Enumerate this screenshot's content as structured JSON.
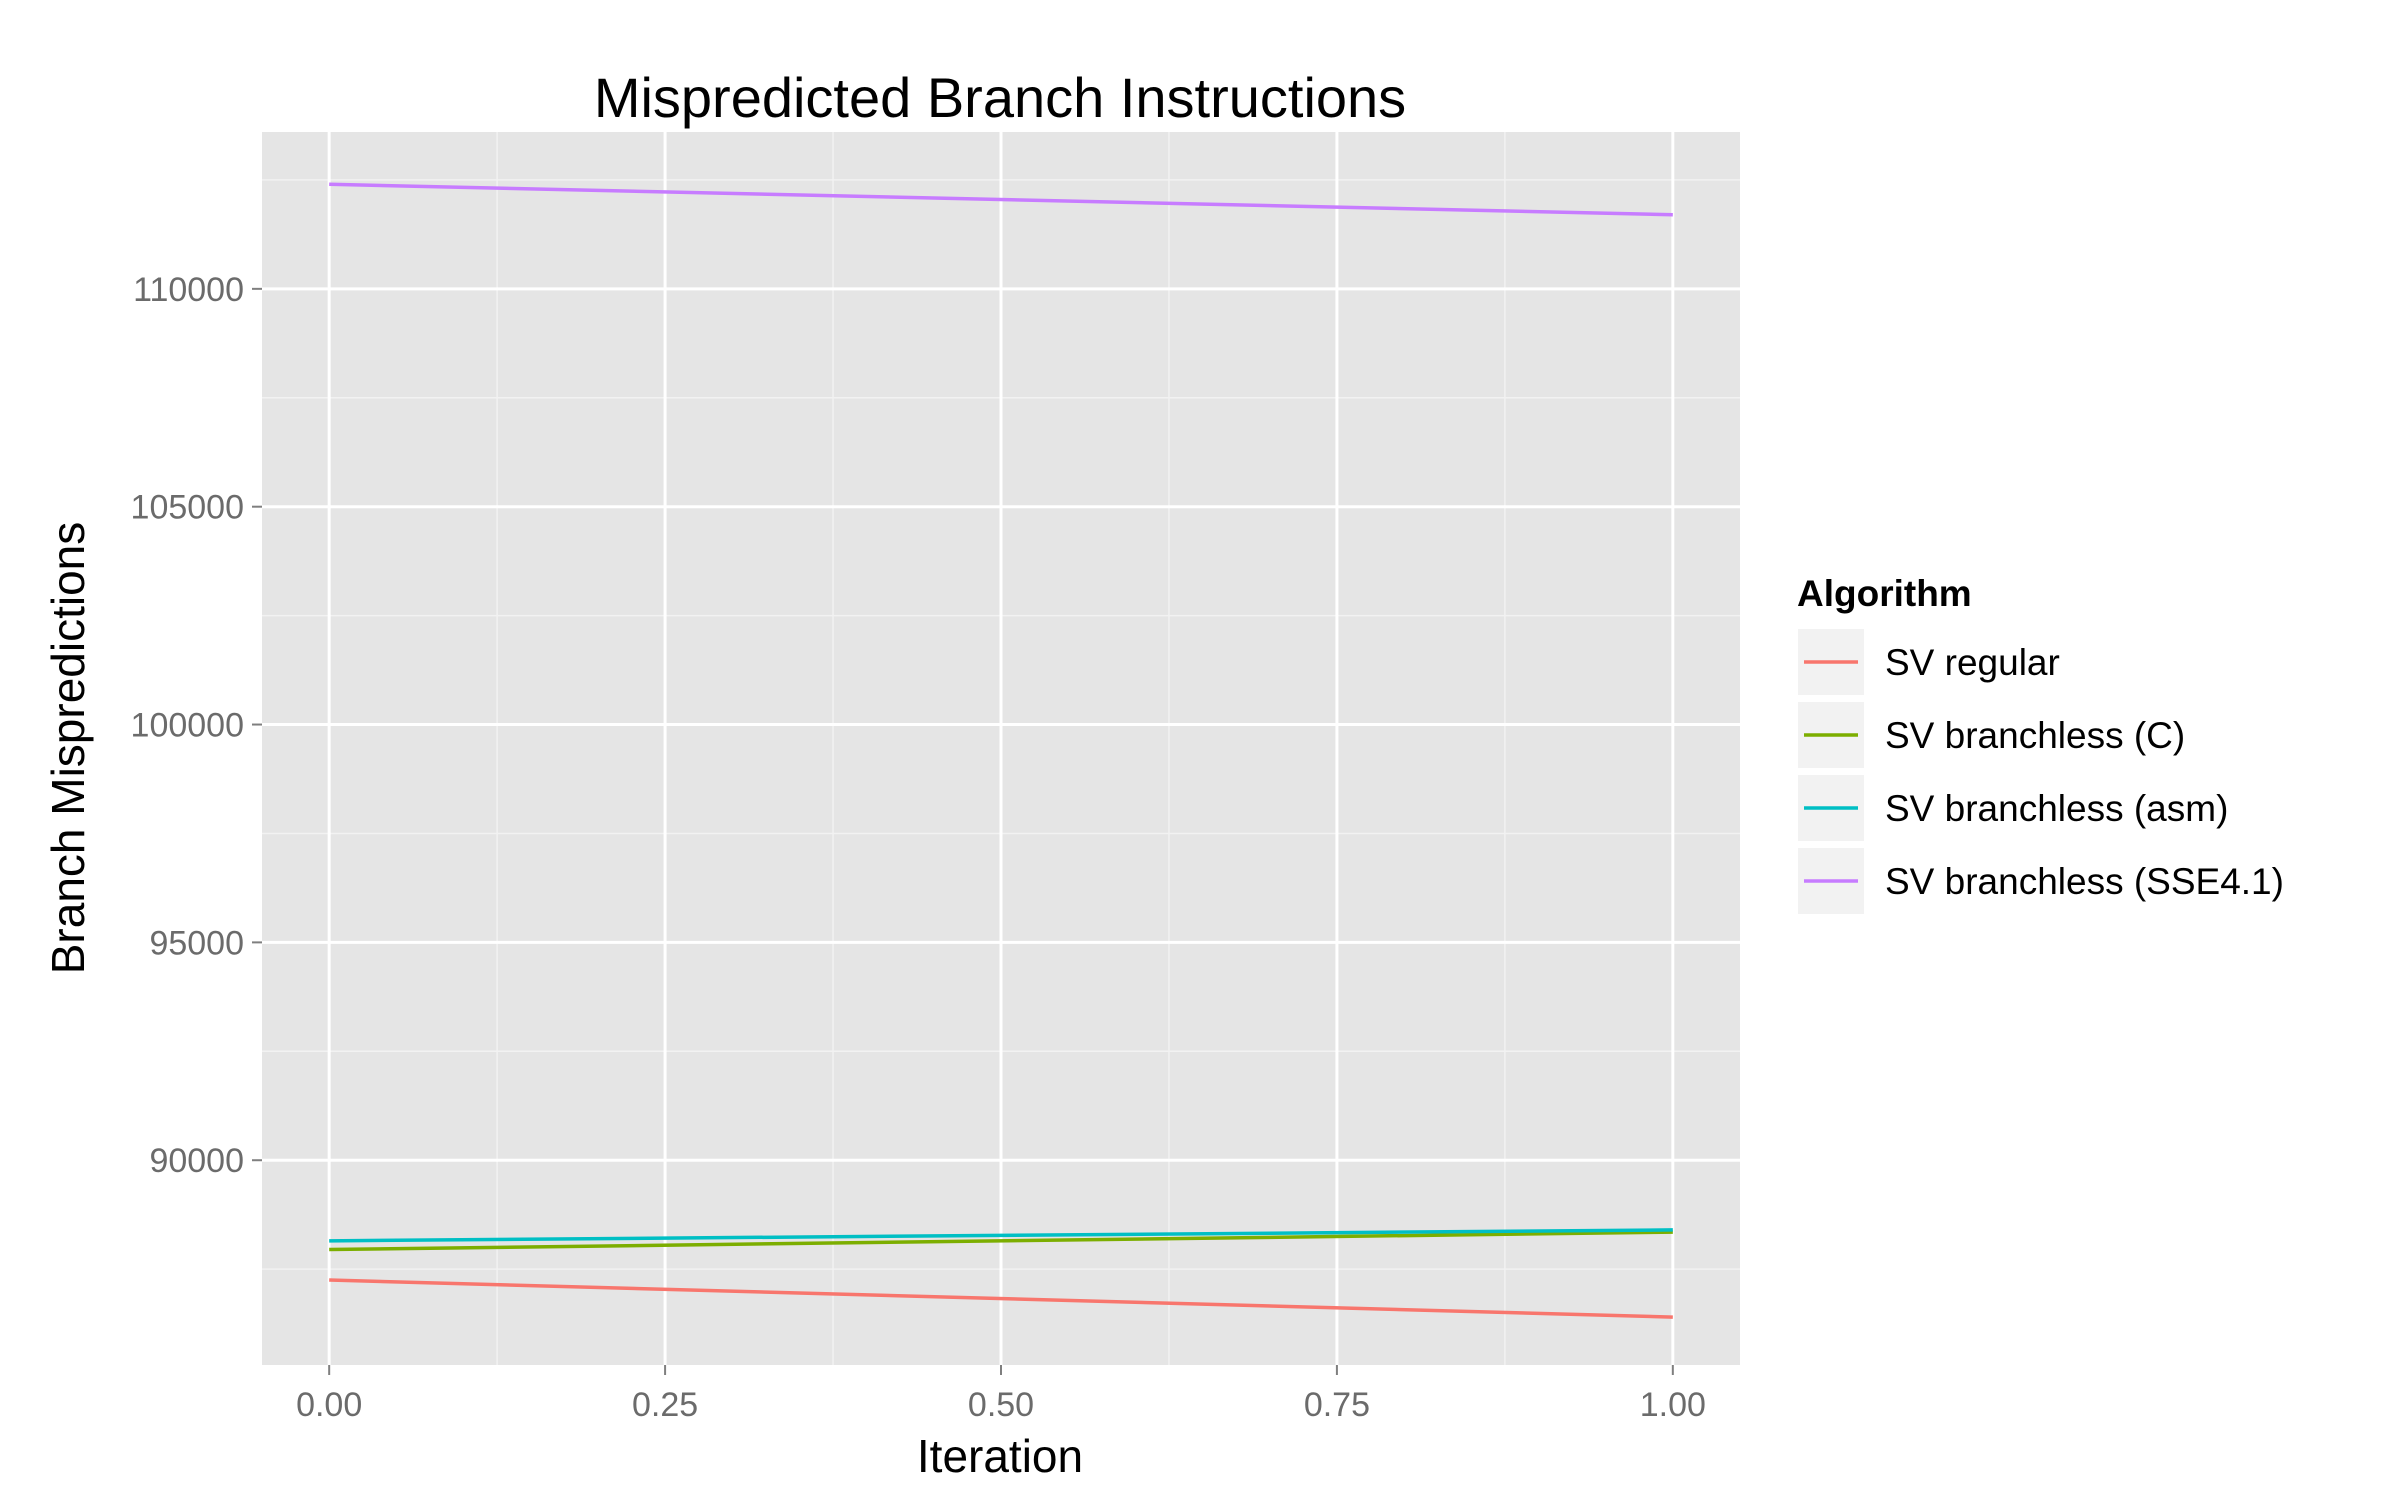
{
  "chart_data": {
    "type": "line",
    "title": "Mispredicted Branch Instructions",
    "xlabel": "Iteration",
    "ylabel": "Branch Mispredictions",
    "x": [
      0.0,
      1.0
    ],
    "xlim": [
      -0.05,
      1.05
    ],
    "ylim": [
      85300,
      113600
    ],
    "x_ticks": [
      0.0,
      0.25,
      0.5,
      0.75,
      1.0
    ],
    "x_tick_labels": [
      "0.00",
      "0.25",
      "0.50",
      "0.75",
      "1.00"
    ],
    "y_ticks": [
      90000,
      95000,
      100000,
      105000,
      110000
    ],
    "y_tick_labels": [
      "90000",
      "95000",
      "100000",
      "105000",
      "110000"
    ],
    "grid": true,
    "legend": {
      "title": "Algorithm",
      "position": "right"
    },
    "series": [
      {
        "name": "SV regular",
        "color": "#F8766D",
        "values": [
          87250,
          86400
        ]
      },
      {
        "name": "SV branchless (C)",
        "color": "#7CAE00",
        "values": [
          87950,
          88350
        ]
      },
      {
        "name": "SV branchless (asm)",
        "color": "#00BFC4",
        "values": [
          88150,
          88400
        ]
      },
      {
        "name": "SV branchless (SSE4.1)",
        "color": "#C77CFF",
        "values": [
          112400,
          111700
        ]
      }
    ]
  }
}
